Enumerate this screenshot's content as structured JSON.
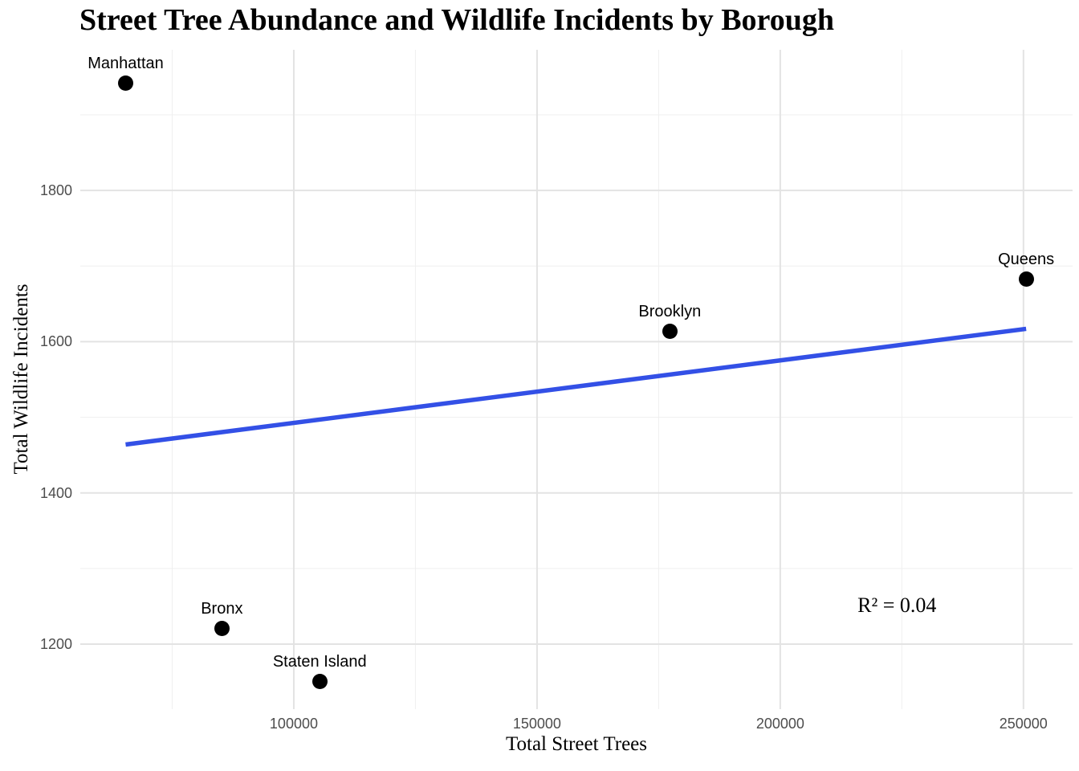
{
  "chart_data": {
    "type": "scatter",
    "title": "Street Tree Abundance and Wildlife Incidents by Borough",
    "xlabel": "Total Street Trees",
    "ylabel": "Total Wildlife Incidents",
    "points": [
      {
        "label": "Manhattan",
        "x": 65423,
        "y": 1942
      },
      {
        "label": "Bronx",
        "x": 85203,
        "y": 1221
      },
      {
        "label": "Staten Island",
        "x": 105318,
        "y": 1151
      },
      {
        "label": "Brooklyn",
        "x": 177293,
        "y": 1614
      },
      {
        "label": "Queens",
        "x": 250551,
        "y": 1683
      }
    ],
    "point_color": "#000000",
    "trend_line": {
      "x1": 65423,
      "y1": 1464,
      "x2": 250551,
      "y2": 1617,
      "color": "#3350e6",
      "width": 5.5
    },
    "annotation": {
      "text": "R² = 0.04",
      "x": 224000,
      "y": 1250
    },
    "x_ticks": [
      100000,
      150000,
      200000,
      250000
    ],
    "y_ticks": [
      1200,
      1400,
      1600,
      1800
    ],
    "x_minor_ticks": [
      75000,
      125000,
      175000,
      225000
    ],
    "y_minor_ticks": [
      1300,
      1500,
      1700,
      1900
    ],
    "xlim": [
      56100,
      260100
    ],
    "ylim": [
      1114,
      1986
    ],
    "grid": "on",
    "legend": "none",
    "colors": {
      "major_grid": "#e3e3e3",
      "minor_grid": "#efefef",
      "tick_label": "#4d4d4d",
      "background": "#ffffff"
    }
  }
}
